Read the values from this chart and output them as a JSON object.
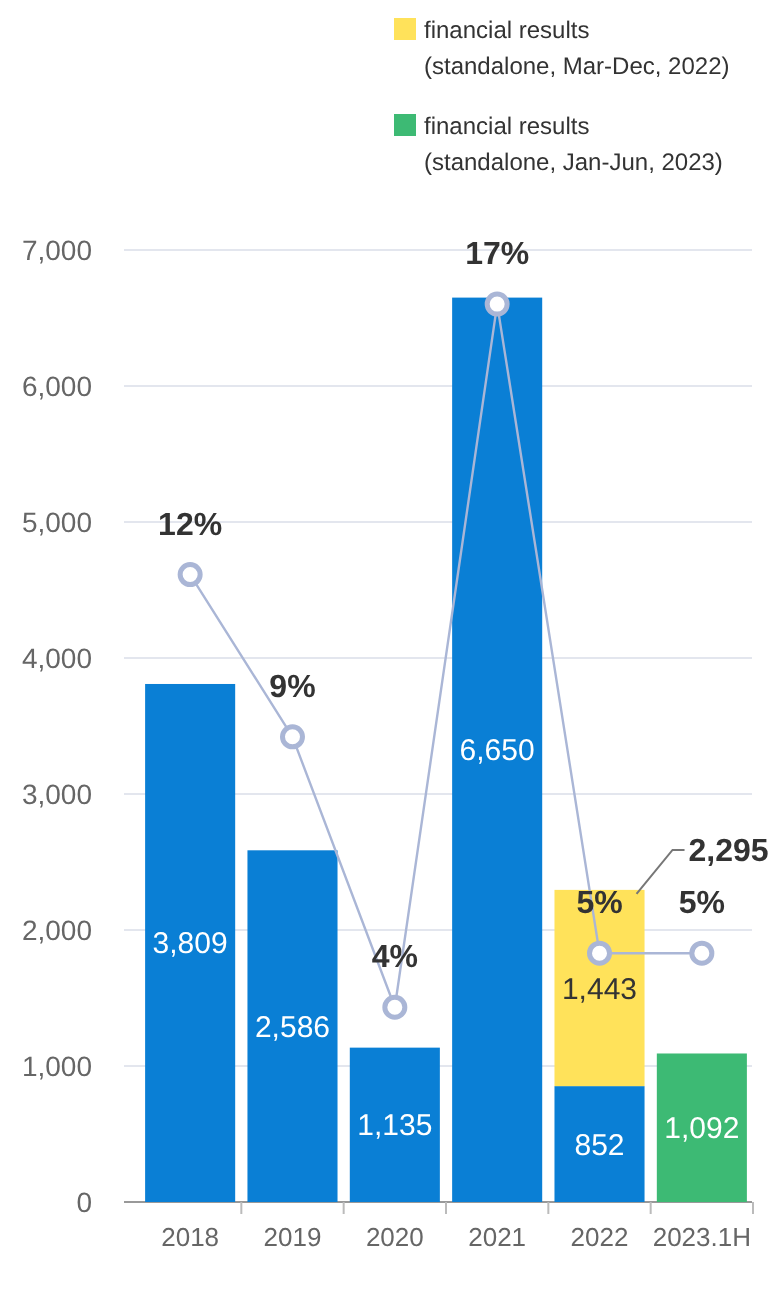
{
  "chart_data": {
    "type": "bar",
    "stacked": true,
    "categories": [
      "2018",
      "2019",
      "2020",
      "2021",
      "2022",
      "2023.1H"
    ],
    "ylim": [
      0,
      7000
    ],
    "yticks": [
      0,
      {
        "value": 1000,
        "label": "1,000"
      },
      {
        "value": 2000,
        "label": "2,000"
      },
      {
        "value": 3000,
        "label": "3,000"
      },
      {
        "value": 4000,
        "label": "4,000"
      },
      {
        "value": 5000,
        "label": "5,000"
      },
      {
        "value": 6000,
        "label": "6,000"
      },
      {
        "value": 7000,
        "label": "7,000"
      }
    ],
    "y2lim": [
      0.4,
      18
    ],
    "grid": "y",
    "legend": "top right",
    "data_labels": true,
    "totals": [
      null,
      null,
      null,
      null,
      "2,295",
      null
    ],
    "series": [
      {
        "color": "#0a7fd5",
        "values": [
          3809,
          2586,
          1135,
          6650,
          852,
          null
        ],
        "value_labels": [
          "3,809",
          "2,586",
          "1,135",
          "6,650",
          "852",
          null
        ]
      },
      {
        "name": "financial results (standalone, Mar-Dec, 2022)",
        "color": "#ffe25a",
        "values": [
          null,
          null,
          null,
          null,
          1443,
          null
        ],
        "value_labels": [
          null,
          null,
          null,
          null,
          "1,443",
          null
        ]
      },
      {
        "name": "financial results (standalone, Jan-Jun, 2023)",
        "color": "#3dba74",
        "values": [
          null,
          null,
          null,
          null,
          null,
          1092
        ],
        "value_labels": [
          null,
          null,
          null,
          null,
          null,
          "1,092"
        ]
      },
      {
        "type": "line",
        "axis": "y2",
        "color": "#aab6d6",
        "marker": "circle",
        "values": [
          12,
          9,
          4,
          17,
          5,
          5
        ],
        "value_labels": [
          "12%",
          "9%",
          "4%",
          "17%",
          "5%",
          "5%"
        ]
      }
    ]
  }
}
